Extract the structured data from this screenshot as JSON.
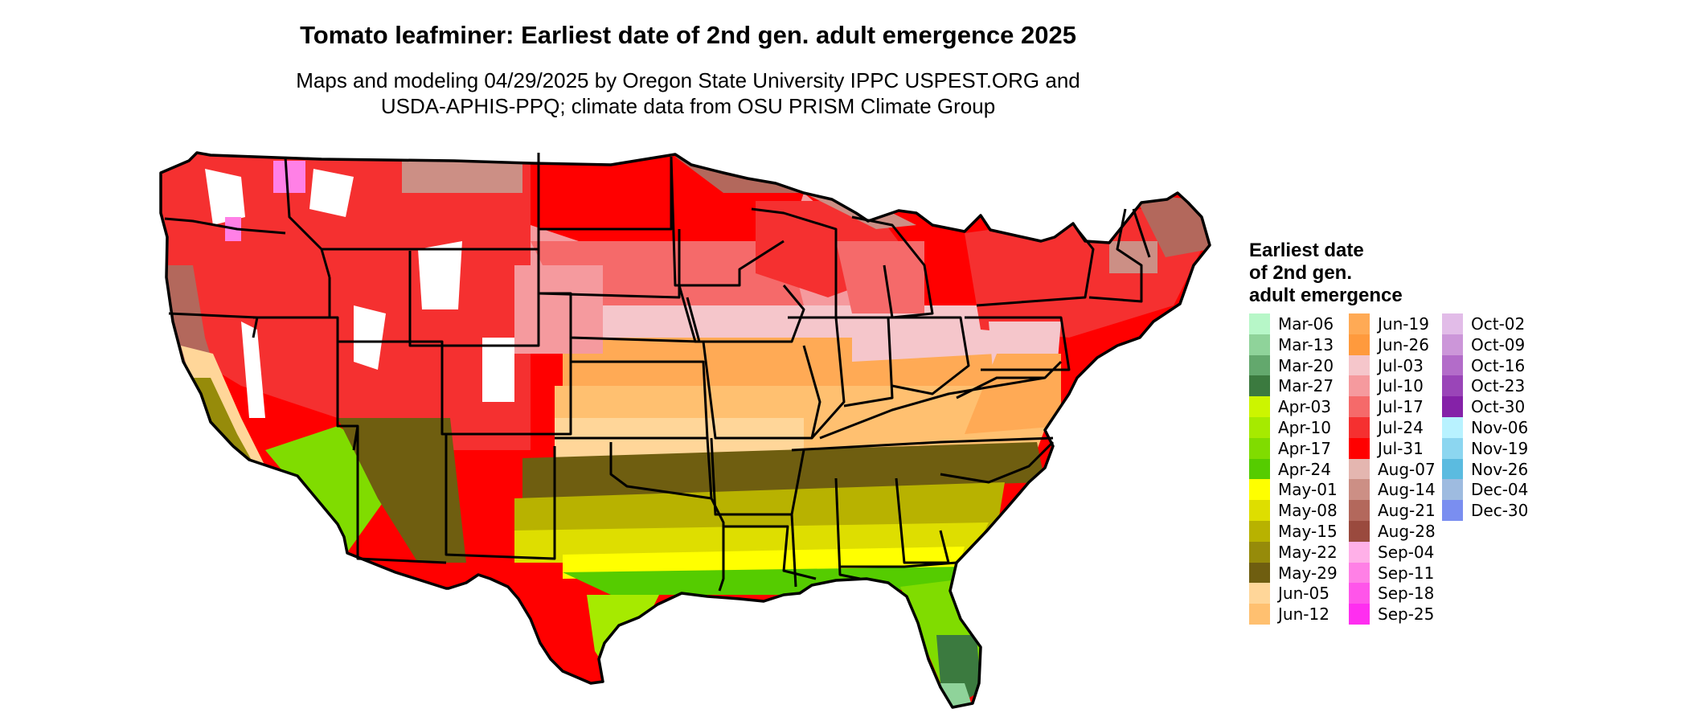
{
  "header": {
    "title": "Tomato leafminer: Earliest date of 2nd gen. adult emergence 2025",
    "subtitle_lines": [
      "Maps and modeling 04/29/2025 by Oregon State University IPPC USPEST.ORG and",
      "USDA-APHIS-PPQ; climate data from OSU PRISM Climate Group"
    ]
  },
  "legend": {
    "title_lines": [
      "Earliest date",
      "of 2nd gen.",
      "adult emergence"
    ],
    "columns": [
      [
        {
          "label": "Mar-06",
          "color": "#b7f7c8"
        },
        {
          "label": "Mar-13",
          "color": "#8fd39a"
        },
        {
          "label": "Mar-20",
          "color": "#63a86d"
        },
        {
          "label": "Mar-27",
          "color": "#3b7a3f"
        },
        {
          "label": "Apr-03",
          "color": "#ccf500"
        },
        {
          "label": "Apr-10",
          "color": "#a6ea00"
        },
        {
          "label": "Apr-17",
          "color": "#80dc00"
        },
        {
          "label": "Apr-24",
          "color": "#55cc00"
        },
        {
          "label": "May-01",
          "color": "#ffff00"
        },
        {
          "label": "May-08",
          "color": "#dede00"
        },
        {
          "label": "May-15",
          "color": "#b8b200"
        },
        {
          "label": "May-22",
          "color": "#968b0a"
        },
        {
          "label": "May-29",
          "color": "#6f5e10"
        },
        {
          "label": "Jun-05",
          "color": "#ffd699"
        },
        {
          "label": "Jun-12",
          "color": "#ffc070"
        }
      ],
      [
        {
          "label": "Jun-19",
          "color": "#ffaa55"
        },
        {
          "label": "Jun-26",
          "color": "#ff9a3d"
        },
        {
          "label": "Jul-03",
          "color": "#f5c6cb"
        },
        {
          "label": "Jul-10",
          "color": "#f59a9e"
        },
        {
          "label": "Jul-17",
          "color": "#f56a6a"
        },
        {
          "label": "Jul-24",
          "color": "#f53030"
        },
        {
          "label": "Jul-31",
          "color": "#ff0000"
        },
        {
          "label": "Aug-07",
          "color": "#e4b6b0"
        },
        {
          "label": "Aug-14",
          "color": "#cc8f85"
        },
        {
          "label": "Aug-21",
          "color": "#b3685c"
        },
        {
          "label": "Aug-28",
          "color": "#9a4a3e"
        },
        {
          "label": "Sep-04",
          "color": "#ffb0e8"
        },
        {
          "label": "Sep-11",
          "color": "#ff80e6"
        },
        {
          "label": "Sep-18",
          "color": "#ff55ea"
        },
        {
          "label": "Sep-25",
          "color": "#ff2ef0"
        }
      ],
      [
        {
          "label": "Oct-02",
          "color": "#e2bce8"
        },
        {
          "label": "Oct-09",
          "color": "#cc96d9"
        },
        {
          "label": "Oct-16",
          "color": "#b36cc9"
        },
        {
          "label": "Oct-23",
          "color": "#9a45b8"
        },
        {
          "label": "Oct-30",
          "color": "#8522a8"
        },
        {
          "label": "Nov-06",
          "color": "#b8f2ff"
        },
        {
          "label": "Nov-19",
          "color": "#8cd6f0"
        },
        {
          "label": "Nov-26",
          "color": "#5bbbe0"
        },
        {
          "label": "Dec-04",
          "color": "#9ebbe0"
        },
        {
          "label": "Dec-30",
          "color": "#7a8ef0"
        }
      ]
    ]
  }
}
